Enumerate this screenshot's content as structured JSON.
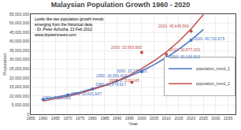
{
  "chart_data": {
    "type": "line",
    "title": "Malaysian Population Growth 1960 - 2020",
    "subtitle": [
      "Looks like two population growth trends",
      "emerging from the historical data.",
      "- Dr. Peter Achutha, 13 Feb 2012",
      "www.drpetersnews.com"
    ],
    "xlabel": "Year",
    "ylabel": "Population",
    "x": [
      1960,
      1965,
      1970,
      1975,
      1980,
      1985,
      1990,
      1995,
      2000,
      2005,
      2010,
      2015,
      2020,
      2025
    ],
    "series": [
      {
        "name": "population_trend_1",
        "color": "#4472C4",
        "type": "line",
        "values": [
          8143175,
          9313033,
          10650954,
          12181082,
          13931030,
          15932377,
          18221240,
          20838936,
          23832698,
          27256549,
          31172284,
          35650554,
          40772179,
          46629587
        ]
      },
      {
        "name": "population_trend_2",
        "color": "#C0504D",
        "type": "line",
        "values": [
          7203406,
          8419827,
          9841663,
          11503600,
          13446184,
          15716806,
          18370863,
          21473103,
          25099211,
          29337650,
          34291811,
          40082580,
          46851204,
          54762827
        ]
      },
      {
        "color": "#4472C4",
        "type": "scatter",
        "x": [
          1960,
          1970,
          1980,
          1990,
          2000,
          2010,
          2020
        ],
        "values": [
          8100000,
          10601647,
          13879917,
          18381429,
          23370501,
          31131910,
          40720679
        ]
      },
      {
        "color": "#C0504D",
        "type": "scatter",
        "x": [
          1996,
          2000,
          2010,
          2020
        ],
        "values": [
          17510145,
          33993665,
          32877150,
          45649566
        ]
      }
    ],
    "annotations": [
      {
        "text": "1960: 8,100,000",
        "x": 1959,
        "y": 6900000,
        "color": "#4472C4"
      },
      {
        "text": "1970: 10,601,647",
        "x": 1970.5,
        "y": 9201647,
        "color": "#4472C4"
      },
      {
        "text": "1980: 13,879,917",
        "x": 1980.5,
        "y": 14079917,
        "color": "#4472C4"
      },
      {
        "text": "1990: 18,381,429",
        "x": 1981,
        "y": 18981429,
        "color": "#4472C4"
      },
      {
        "text": "2000: 23,370,501",
        "x": 1989,
        "y": 21770501,
        "color": "#4472C4"
      },
      {
        "text": "2010: 31,131,910",
        "x": 2010.5,
        "y": 29331910,
        "color": "#4472C4"
      },
      {
        "text": "2020: 40,720,679",
        "x": 2020.5,
        "y": 39220679,
        "color": "#4472C4"
      },
      {
        "text": "1996: 17,510,145",
        "x": 1986,
        "y": 16310145,
        "color": "#C0504D"
      },
      {
        "text": "2000: 33,993,665",
        "x": 1987,
        "y": 34593665,
        "color": "#C0504D"
      },
      {
        "text": "2010: 32,877,150",
        "x": 2010.5,
        "y": 33477150,
        "color": "#C0504D"
      },
      {
        "text": "2020: 45,649,566",
        "x": 2006,
        "y": 46249566,
        "color": "#C0504D"
      }
    ],
    "xlim": [
      1955,
      2038
    ],
    "ylim": [
      0,
      55000000
    ],
    "xticks": [
      1955,
      1960,
      1965,
      1970,
      1975,
      1980,
      1985,
      1990,
      1995,
      2000,
      2005,
      2010,
      2015,
      2020,
      2025,
      2030,
      2035
    ],
    "yticks": [
      0,
      {
        "value": 5000000,
        "label": "5,000,000"
      },
      {
        "value": 10000000,
        "label": "10,000,000"
      },
      {
        "value": 15000000,
        "label": "15,000,000"
      },
      {
        "value": 20000000,
        "label": "20,000,000"
      },
      {
        "value": 25000000,
        "label": "25,000,000"
      },
      {
        "value": 30000000,
        "label": "30,000,000"
      },
      {
        "value": 35000000,
        "label": "35,000,000"
      },
      {
        "value": 40000000,
        "label": "40,000,000"
      },
      {
        "value": 45000000,
        "label": "45,000,000"
      },
      {
        "value": 50000000,
        "label": "50,000,000"
      },
      {
        "value": 55000000,
        "label": "55,000,000"
      }
    ],
    "grid": true,
    "legend": "right"
  }
}
